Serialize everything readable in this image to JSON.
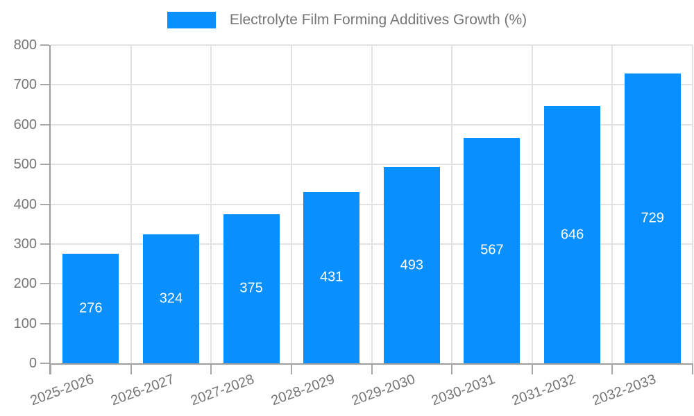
{
  "legend": {
    "label": "Electrolyte Film Forming Additives Growth (%)",
    "swatch_color": "#0a8fff"
  },
  "chart_data": {
    "type": "bar",
    "title": "Electrolyte Film Forming Additives Growth (%)",
    "categories": [
      "2025-2026",
      "2026-2027",
      "2027-2028",
      "2028-2029",
      "2029-2030",
      "2030-2031",
      "2031-2032",
      "2032-2033"
    ],
    "values": [
      276,
      324,
      375,
      431,
      493,
      567,
      646,
      729
    ],
    "xlabel": "",
    "ylabel": "",
    "ylim": [
      0,
      800
    ],
    "yticks": [
      0,
      100,
      200,
      300,
      400,
      500,
      600,
      700,
      800
    ],
    "grid": true,
    "legend_position": "top-center",
    "x_tick_label_rotation_deg": -20,
    "colors": {
      "bar": "#0a8fff",
      "value_label": "#ffffff",
      "axis_line": "#9e9e9e",
      "gridline": "#e2e2e2",
      "tick_label": "#757575"
    }
  }
}
